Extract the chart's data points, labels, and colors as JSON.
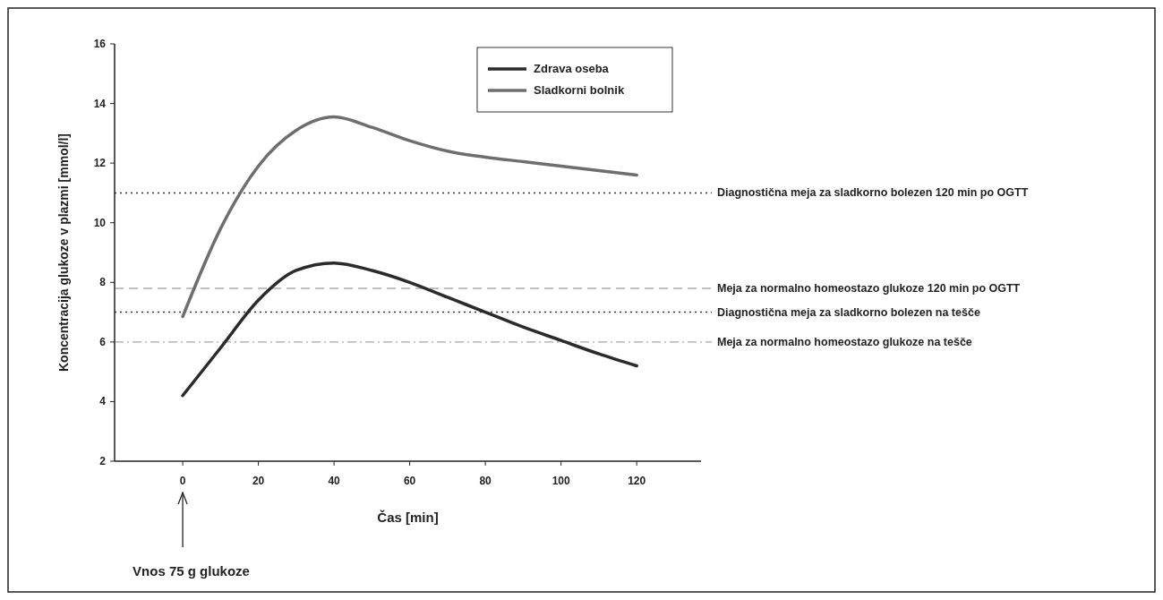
{
  "chart_data": {
    "type": "line",
    "xlabel": "Čas [min]",
    "ylabel": "Koncentracija glukoze v plazmi [mmol/l]",
    "x": [
      0,
      10,
      20,
      30,
      40,
      50,
      60,
      70,
      80,
      90,
      100,
      110,
      120
    ],
    "series": [
      {
        "name": "Zdrava oseba",
        "color": "#2b2b2b",
        "values": [
          4.2,
          5.8,
          7.4,
          8.4,
          8.65,
          8.4,
          8.0,
          7.5,
          7.0,
          6.5,
          6.05,
          5.6,
          5.2
        ]
      },
      {
        "name": "Sladkorni bolnik",
        "color": "#6e6e6e",
        "values": [
          6.85,
          9.8,
          11.9,
          13.1,
          13.55,
          13.2,
          12.75,
          12.4,
          12.2,
          12.05,
          11.9,
          11.75,
          11.6
        ]
      }
    ],
    "xlim": [
      -18,
      137
    ],
    "ylim": [
      2,
      16
    ],
    "xticks": [
      0,
      20,
      40,
      60,
      80,
      100,
      120
    ],
    "yticks": [
      2,
      4,
      6,
      8,
      10,
      12,
      14,
      16
    ],
    "grid": false,
    "legend": "top right",
    "marker": "none",
    "line_style": "solid",
    "ref_lines": [
      {
        "axis": "y",
        "value": 11,
        "label": "Diagnostična meja za sladkorno bolezen 120 min po OGTT",
        "color": "#333333",
        "line_style": "dotted"
      },
      {
        "axis": "y",
        "value": 7.8,
        "label": "Meja za normalno homeostazo glukoze 120 min po OGTT",
        "color": "#b0b0b0",
        "line_style": "dashed"
      },
      {
        "axis": "y",
        "value": 7,
        "label": "Diagnostična meja za sladkorno bolezen na tešče",
        "color": "#333333",
        "line_style": "dotted"
      },
      {
        "axis": "y",
        "value": 6,
        "label": "Meja za normalno homeostazo glukoze na tešče",
        "color": "#c0c0c0",
        "line_style": "dashdot"
      }
    ],
    "annotations": [
      "Vnos 75 g glukoze"
    ]
  }
}
